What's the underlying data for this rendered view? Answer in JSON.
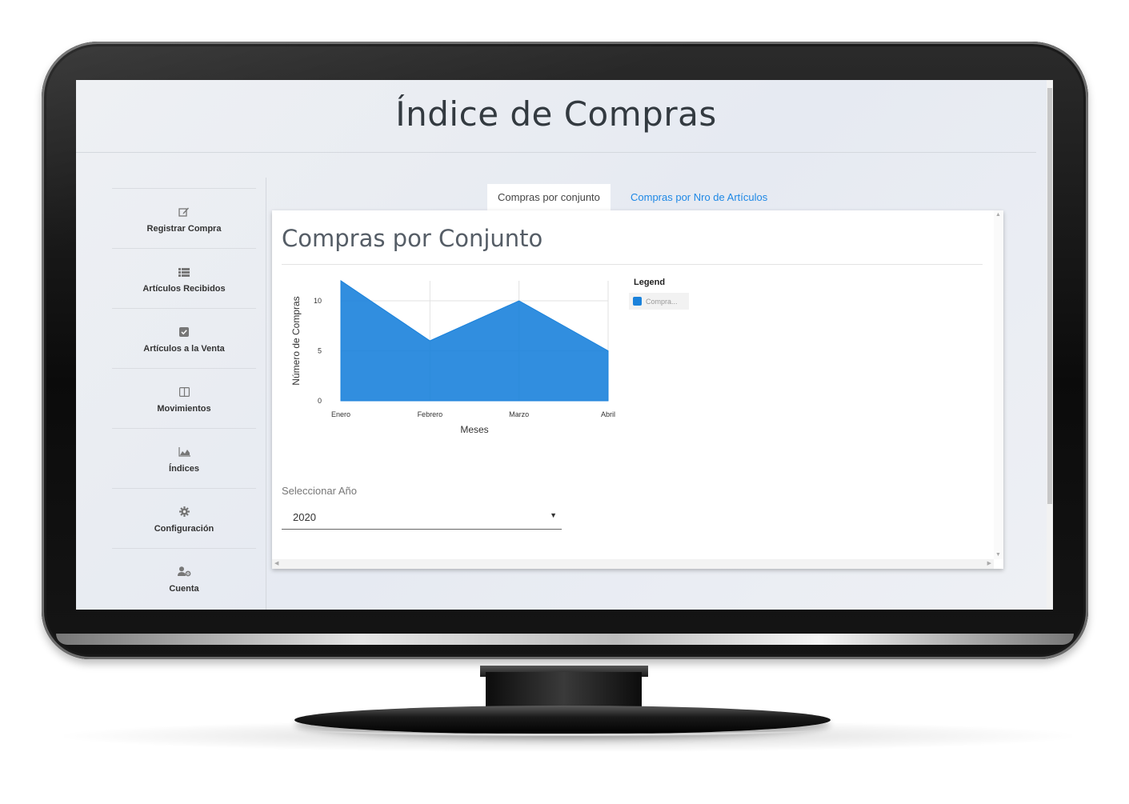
{
  "page": {
    "title": "Índice de Compras"
  },
  "sidebar": {
    "items": [
      {
        "label": "Registrar Compra",
        "icon": "edit-icon"
      },
      {
        "label": "Artículos Recibidos",
        "icon": "list-icon"
      },
      {
        "label": "Artículos a la Venta",
        "icon": "check-square-icon"
      },
      {
        "label": "Movimientos",
        "icon": "columns-icon"
      },
      {
        "label": "Índices",
        "icon": "area-chart-icon"
      },
      {
        "label": "Configuración",
        "icon": "gear-icon"
      },
      {
        "label": "Cuenta",
        "icon": "user-gear-icon"
      }
    ]
  },
  "tabs": [
    {
      "label": "Compras por conjunto",
      "active": true
    },
    {
      "label": "Compras por Nro de Artículos",
      "active": false
    }
  ],
  "card": {
    "title": "Compras por Conjunto",
    "legend_title": "Legend",
    "legend_item": "Compra..."
  },
  "chart_data": {
    "type": "area",
    "categories": [
      "Enero",
      "Febrero",
      "Marzo",
      "Abril"
    ],
    "series": [
      {
        "name": "Compra...",
        "values": [
          12,
          6,
          10,
          5
        ],
        "color": "#1b82db"
      }
    ],
    "xlabel": "Meses",
    "ylabel": "Número de Compras",
    "ylim": [
      0,
      12
    ],
    "yticks": [
      0,
      5,
      10
    ],
    "grid": true,
    "legend": "right"
  },
  "year_select": {
    "label": "Seleccionar Año",
    "value": "2020"
  },
  "colors": {
    "accent": "#1e88e5",
    "series": "#1b82db"
  }
}
